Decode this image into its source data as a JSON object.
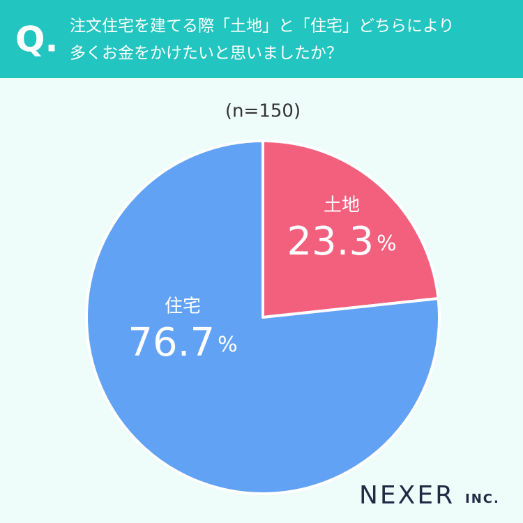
{
  "chart_data": {
    "type": "pie",
    "q_label": "Q.",
    "title_lines": [
      "注文住宅を建てる際「土地」と「住宅」どちらにより",
      "多くお金をかけたいと思いましたか？"
    ],
    "subtitle": "(n=150)",
    "categories": [
      "土地",
      "住宅"
    ],
    "values": [
      23.3,
      76.7
    ],
    "value_labels": [
      "23.3%",
      "76.7%"
    ],
    "colors": [
      "#f2607e",
      "#62a2f5"
    ],
    "logo": "NEXER",
    "logo_suffix": "INC."
  }
}
